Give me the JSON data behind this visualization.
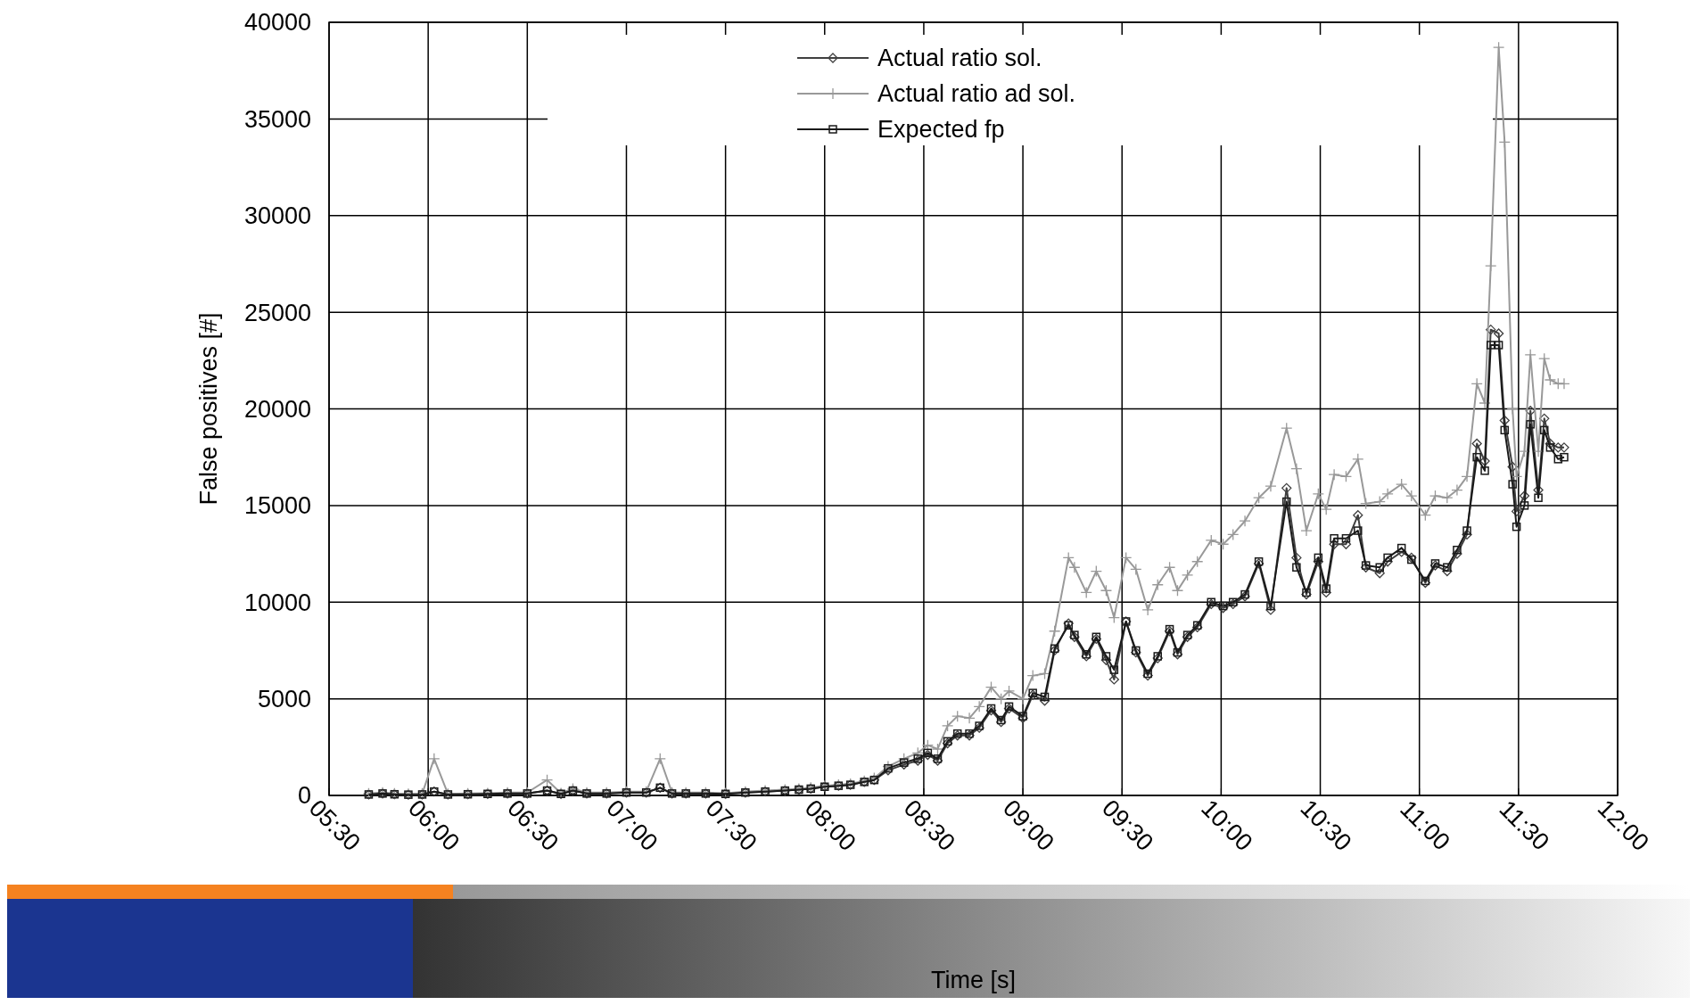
{
  "chart_data": {
    "type": "line",
    "xlabel": "Time [s]",
    "ylabel": "False positives [#]",
    "xlim": [
      5.5,
      12
    ],
    "xticks": [
      {
        "value": 5.5,
        "label": "05:30"
      },
      {
        "value": 6,
        "label": "06:00"
      },
      {
        "value": 6.5,
        "label": "06:30"
      },
      {
        "value": 7,
        "label": "07:00"
      },
      {
        "value": 7.5,
        "label": "07:30"
      },
      {
        "value": 8,
        "label": "08:00"
      },
      {
        "value": 8.5,
        "label": "08:30"
      },
      {
        "value": 9,
        "label": "09:00"
      },
      {
        "value": 9.5,
        "label": "09:30"
      },
      {
        "value": 10,
        "label": "10:00"
      },
      {
        "value": 10.5,
        "label": "10:30"
      },
      {
        "value": 11,
        "label": "11:00"
      },
      {
        "value": 11.5,
        "label": "11:30"
      },
      {
        "value": 12,
        "label": "12:00"
      }
    ],
    "ylim": [
      0,
      40000
    ],
    "yticks": [
      0,
      5000,
      10000,
      15000,
      20000,
      25000,
      30000,
      35000,
      40000
    ],
    "grid": true,
    "legend": "top right",
    "line_style": "solid",
    "x": [
      5.7,
      5.77,
      5.83,
      5.9,
      5.97,
      6.03,
      6.1,
      6.2,
      6.3,
      6.4,
      6.5,
      6.6,
      6.67,
      6.73,
      6.8,
      6.9,
      7.0,
      7.1,
      7.17,
      7.23,
      7.3,
      7.4,
      7.5,
      7.6,
      7.7,
      7.8,
      7.87,
      7.93,
      8.0,
      8.07,
      8.13,
      8.2,
      8.25,
      8.32,
      8.4,
      8.47,
      8.52,
      8.57,
      8.62,
      8.67,
      8.73,
      8.78,
      8.84,
      8.89,
      8.93,
      9.0,
      9.05,
      9.11,
      9.16,
      9.23,
      9.26,
      9.32,
      9.37,
      9.42,
      9.46,
      9.52,
      9.57,
      9.63,
      9.68,
      9.74,
      9.78,
      9.83,
      9.88,
      9.95,
      10.01,
      10.06,
      10.12,
      10.19,
      10.25,
      10.33,
      10.38,
      10.43,
      10.49,
      10.53,
      10.57,
      10.63,
      10.69,
      10.73,
      10.8,
      10.84,
      10.91,
      10.96,
      11.03,
      11.08,
      11.14,
      11.19,
      11.24,
      11.29,
      11.33,
      11.36,
      11.4,
      11.43,
      11.47,
      11.49,
      11.53,
      11.56,
      11.6,
      11.63,
      11.66,
      11.7,
      11.73
    ],
    "series": [
      {
        "name": "Actual ratio sol.",
        "color": "#404040",
        "marker": "diamond",
        "values": [
          50,
          100,
          60,
          40,
          50,
          200,
          50,
          60,
          80,
          100,
          100,
          250,
          80,
          250,
          100,
          100,
          150,
          150,
          400,
          100,
          100,
          100,
          80,
          150,
          200,
          250,
          300,
          350,
          450,
          500,
          550,
          700,
          800,
          1300,
          1600,
          1800,
          2100,
          1800,
          2700,
          3100,
          3100,
          3500,
          4400,
          3800,
          4500,
          4000,
          5200,
          4900,
          7500,
          8900,
          8200,
          7200,
          8100,
          7000,
          6000,
          9000,
          7400,
          6200,
          7100,
          8500,
          7300,
          8200,
          8700,
          9900,
          9700,
          9900,
          10300,
          12000,
          9600,
          15900,
          12300,
          10400,
          12100,
          10500,
          13000,
          13000,
          14500,
          11800,
          11500,
          12100,
          12600,
          12300,
          11000,
          11900,
          11600,
          12500,
          13500,
          18200,
          17300,
          24100,
          23900,
          19400,
          17000,
          14700,
          15500,
          19900,
          15800,
          19500,
          18200,
          18000,
          18000
        ]
      },
      {
        "name": "Actual ratio ad sol.",
        "color": "#999999",
        "marker": "cross",
        "values": [
          100,
          150,
          100,
          80,
          100,
          1900,
          80,
          100,
          120,
          150,
          150,
          800,
          120,
          350,
          150,
          150,
          200,
          200,
          1900,
          150,
          150,
          150,
          120,
          200,
          250,
          300,
          350,
          400,
          500,
          550,
          600,
          750,
          900,
          1500,
          1900,
          2200,
          2600,
          2400,
          3600,
          4100,
          4000,
          4600,
          5600,
          5000,
          5400,
          5000,
          6200,
          6300,
          8500,
          12300,
          11800,
          10500,
          11600,
          10600,
          9200,
          12300,
          11700,
          9600,
          10900,
          11800,
          10600,
          11400,
          12100,
          13200,
          13000,
          13500,
          14200,
          15400,
          16000,
          19000,
          16900,
          13700,
          15600,
          14800,
          16600,
          16500,
          17400,
          15100,
          15200,
          15600,
          16100,
          15500,
          14500,
          15500,
          15400,
          15800,
          16500,
          21300,
          20300,
          27400,
          38700,
          33800,
          20000,
          16500,
          17800,
          22800,
          17800,
          22600,
          21500,
          21300,
          21300
        ]
      },
      {
        "name": "Expected fp",
        "color": "#1a1a1a",
        "marker": "square",
        "values": [
          50,
          100,
          60,
          40,
          50,
          200,
          50,
          60,
          80,
          100,
          100,
          250,
          80,
          250,
          100,
          100,
          150,
          150,
          400,
          100,
          100,
          100,
          80,
          150,
          200,
          250,
          300,
          350,
          450,
          500,
          550,
          700,
          800,
          1400,
          1700,
          1900,
          2200,
          1900,
          2800,
          3200,
          3200,
          3600,
          4500,
          3900,
          4600,
          4100,
          5300,
          5100,
          7600,
          8800,
          8300,
          7300,
          8200,
          7200,
          6500,
          9000,
          7500,
          6300,
          7200,
          8600,
          7400,
          8300,
          8800,
          10000,
          9800,
          10000,
          10400,
          12100,
          9800,
          15200,
          11800,
          10500,
          12300,
          10700,
          13300,
          13300,
          13700,
          11900,
          11800,
          12300,
          12800,
          12200,
          11100,
          12000,
          11800,
          12700,
          13700,
          17500,
          16800,
          23300,
          23300,
          18900,
          16100,
          13900,
          15000,
          19200,
          15400,
          18900,
          18000,
          17400,
          17500
        ]
      }
    ]
  }
}
